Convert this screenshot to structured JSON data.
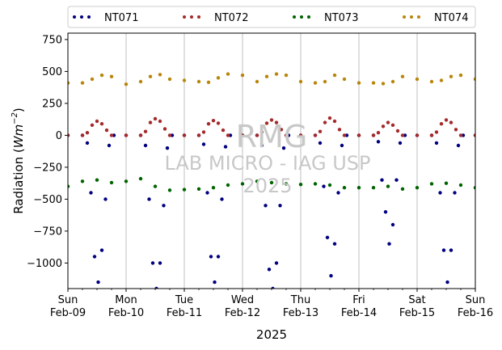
{
  "chart_data": {
    "type": "scatter",
    "title": "",
    "xlabel": "2025",
    "ylabel_prefix": "Radiation (",
    "ylabel_unit_base": "Wm",
    "ylabel_unit_exp": "−2",
    "ylabel_suffix": ")",
    "xlim": [
      "2025-02-09",
      "2025-02-16"
    ],
    "ylim": [
      -1200,
      800
    ],
    "yticks": [
      750,
      500,
      250,
      0,
      -250,
      -500,
      -750,
      -1000
    ],
    "ytick_labels": [
      "750",
      "500",
      "250",
      "0",
      "−250",
      "−500",
      "−750",
      "−1000"
    ],
    "xticks": [
      {
        "date": "2025-02-09",
        "day": "Sun",
        "date_label": "Feb-09"
      },
      {
        "date": "2025-02-10",
        "day": "Mon",
        "date_label": "Feb-10"
      },
      {
        "date": "2025-02-11",
        "day": "Tue",
        "date_label": "Feb-11"
      },
      {
        "date": "2025-02-12",
        "day": "Wed",
        "date_label": "Feb-12"
      },
      {
        "date": "2025-02-13",
        "day": "Thu",
        "date_label": "Feb-13"
      },
      {
        "date": "2025-02-14",
        "day": "Fri",
        "date_label": "Feb-14"
      },
      {
        "date": "2025-02-15",
        "day": "Sat",
        "date_label": "Feb-15"
      },
      {
        "date": "2025-02-16",
        "day": "Sun",
        "date_label": "Feb-16"
      }
    ],
    "grid": "vertical-major",
    "legend_position": "top-outside",
    "series": [
      {
        "name": "NT071",
        "color": "#000080",
        "x": [
          "2025-02-09 00:00",
          "2025-02-09 06:00",
          "2025-02-09 08:00",
          "2025-02-09 09:30",
          "2025-02-09 11:00",
          "2025-02-09 12:30",
          "2025-02-09 14:00",
          "2025-02-09 15:30",
          "2025-02-09 17:00",
          "2025-02-09 19:00",
          "2025-02-10 00:00",
          "2025-02-10 06:00",
          "2025-02-10 08:00",
          "2025-02-10 09:30",
          "2025-02-10 11:00",
          "2025-02-10 12:30",
          "2025-02-10 14:00",
          "2025-02-10 15:30",
          "2025-02-10 17:00",
          "2025-02-10 19:00",
          "2025-02-11 00:00",
          "2025-02-11 06:00",
          "2025-02-11 08:00",
          "2025-02-11 09:30",
          "2025-02-11 11:00",
          "2025-02-11 12:30",
          "2025-02-11 14:00",
          "2025-02-11 15:30",
          "2025-02-11 17:00",
          "2025-02-11 19:00",
          "2025-02-12 00:00",
          "2025-02-12 06:00",
          "2025-02-12 08:00",
          "2025-02-12 09:30",
          "2025-02-12 11:00",
          "2025-02-12 12:30",
          "2025-02-12 14:00",
          "2025-02-12 15:30",
          "2025-02-12 17:00",
          "2025-02-12 19:00",
          "2025-02-13 00:00",
          "2025-02-13 06:00",
          "2025-02-13 08:00",
          "2025-02-13 09:30",
          "2025-02-13 11:00",
          "2025-02-13 12:30",
          "2025-02-13 14:00",
          "2025-02-13 15:30",
          "2025-02-13 17:00",
          "2025-02-13 19:00",
          "2025-02-14 00:00",
          "2025-02-14 06:00",
          "2025-02-14 08:00",
          "2025-02-14 09:30",
          "2025-02-14 11:00",
          "2025-02-14 12:30",
          "2025-02-14 14:00",
          "2025-02-14 15:30",
          "2025-02-14 17:00",
          "2025-02-14 19:00",
          "2025-02-15 00:00",
          "2025-02-15 06:00",
          "2025-02-15 08:00",
          "2025-02-15 09:30",
          "2025-02-15 11:00",
          "2025-02-15 12:30",
          "2025-02-15 14:00",
          "2025-02-15 15:30",
          "2025-02-15 17:00",
          "2025-02-15 19:00",
          "2025-02-16 00:00"
        ],
        "y": [
          0,
          0,
          -60,
          -450,
          -950,
          -1150,
          -900,
          -500,
          -80,
          0,
          0,
          0,
          -80,
          -500,
          -1000,
          -1200,
          -1000,
          -550,
          -100,
          0,
          0,
          0,
          -70,
          -450,
          -950,
          -1150,
          -950,
          -500,
          -90,
          0,
          0,
          0,
          -80,
          -550,
          -1050,
          -1200,
          -1000,
          -550,
          -100,
          0,
          0,
          0,
          -60,
          -400,
          -800,
          -1100,
          -850,
          -450,
          -80,
          0,
          0,
          0,
          -50,
          -350,
          -600,
          -850,
          -700,
          -350,
          -60,
          0,
          0,
          0,
          -60,
          -450,
          -900,
          -1150,
          -900,
          -450,
          -80,
          0,
          0
        ]
      },
      {
        "name": "NT072",
        "color": "#a52a2a",
        "x": [
          "2025-02-09 00:00",
          "2025-02-09 06:00",
          "2025-02-09 08:00",
          "2025-02-09 10:00",
          "2025-02-09 12:00",
          "2025-02-09 14:00",
          "2025-02-09 16:00",
          "2025-02-09 18:00",
          "2025-02-10 00:00",
          "2025-02-10 06:00",
          "2025-02-10 08:00",
          "2025-02-10 10:00",
          "2025-02-10 12:00",
          "2025-02-10 14:00",
          "2025-02-10 16:00",
          "2025-02-10 18:00",
          "2025-02-11 00:00",
          "2025-02-11 06:00",
          "2025-02-11 08:00",
          "2025-02-11 10:00",
          "2025-02-11 12:00",
          "2025-02-11 14:00",
          "2025-02-11 16:00",
          "2025-02-11 18:00",
          "2025-02-12 00:00",
          "2025-02-12 06:00",
          "2025-02-12 08:00",
          "2025-02-12 10:00",
          "2025-02-12 12:00",
          "2025-02-12 14:00",
          "2025-02-12 16:00",
          "2025-02-12 18:00",
          "2025-02-13 00:00",
          "2025-02-13 06:00",
          "2025-02-13 08:00",
          "2025-02-13 10:00",
          "2025-02-13 12:00",
          "2025-02-13 14:00",
          "2025-02-13 16:00",
          "2025-02-13 18:00",
          "2025-02-14 00:00",
          "2025-02-14 06:00",
          "2025-02-14 08:00",
          "2025-02-14 10:00",
          "2025-02-14 12:00",
          "2025-02-14 14:00",
          "2025-02-14 16:00",
          "2025-02-14 18:00",
          "2025-02-15 00:00",
          "2025-02-15 06:00",
          "2025-02-15 08:00",
          "2025-02-15 10:00",
          "2025-02-15 12:00",
          "2025-02-15 14:00",
          "2025-02-15 16:00",
          "2025-02-15 18:00",
          "2025-02-16 00:00"
        ],
        "y": [
          0,
          0,
          20,
          80,
          110,
          90,
          40,
          0,
          0,
          0,
          30,
          100,
          130,
          110,
          50,
          0,
          0,
          0,
          25,
          90,
          115,
          95,
          40,
          0,
          0,
          0,
          25,
          95,
          120,
          100,
          45,
          0,
          0,
          0,
          30,
          100,
          135,
          110,
          45,
          0,
          0,
          0,
          20,
          70,
          100,
          80,
          35,
          0,
          0,
          0,
          25,
          90,
          120,
          100,
          45,
          0,
          0
        ]
      },
      {
        "name": "NT073",
        "color": "#006400",
        "x": [
          "2025-02-09 00:00",
          "2025-02-09 06:00",
          "2025-02-09 12:00",
          "2025-02-09 18:00",
          "2025-02-10 00:00",
          "2025-02-10 06:00",
          "2025-02-10 12:00",
          "2025-02-10 18:00",
          "2025-02-11 00:00",
          "2025-02-11 06:00",
          "2025-02-11 12:00",
          "2025-02-11 18:00",
          "2025-02-12 00:00",
          "2025-02-12 06:00",
          "2025-02-12 12:00",
          "2025-02-12 18:00",
          "2025-02-13 00:00",
          "2025-02-13 06:00",
          "2025-02-13 12:00",
          "2025-02-13 18:00",
          "2025-02-14 00:00",
          "2025-02-14 06:00",
          "2025-02-14 12:00",
          "2025-02-14 18:00",
          "2025-02-15 00:00",
          "2025-02-15 06:00",
          "2025-02-15 12:00",
          "2025-02-15 18:00",
          "2025-02-16 00:00"
        ],
        "y": [
          -400,
          -360,
          -350,
          -370,
          -360,
          -340,
          -400,
          -430,
          -425,
          -420,
          -410,
          -390,
          -380,
          -360,
          -370,
          -380,
          -385,
          -380,
          -390,
          -410,
          -410,
          -410,
          -400,
          -420,
          -410,
          -380,
          -375,
          -390,
          -410
        ]
      },
      {
        "name": "NT074",
        "color": "#b8860b",
        "x": [
          "2025-02-09 00:00",
          "2025-02-09 06:00",
          "2025-02-09 10:00",
          "2025-02-09 14:00",
          "2025-02-09 18:00",
          "2025-02-10 00:00",
          "2025-02-10 06:00",
          "2025-02-10 10:00",
          "2025-02-10 14:00",
          "2025-02-10 18:00",
          "2025-02-11 00:00",
          "2025-02-11 06:00",
          "2025-02-11 10:00",
          "2025-02-11 14:00",
          "2025-02-11 18:00",
          "2025-02-12 00:00",
          "2025-02-12 06:00",
          "2025-02-12 10:00",
          "2025-02-12 14:00",
          "2025-02-12 18:00",
          "2025-02-13 00:00",
          "2025-02-13 06:00",
          "2025-02-13 10:00",
          "2025-02-13 14:00",
          "2025-02-13 18:00",
          "2025-02-14 00:00",
          "2025-02-14 06:00",
          "2025-02-14 10:00",
          "2025-02-14 14:00",
          "2025-02-14 18:00",
          "2025-02-15 00:00",
          "2025-02-15 06:00",
          "2025-02-15 10:00",
          "2025-02-15 14:00",
          "2025-02-15 18:00",
          "2025-02-16 00:00"
        ],
        "y": [
          410,
          410,
          440,
          470,
          460,
          400,
          420,
          460,
          475,
          440,
          430,
          420,
          415,
          450,
          480,
          470,
          420,
          460,
          480,
          470,
          420,
          410,
          420,
          470,
          440,
          410,
          410,
          405,
          420,
          460,
          440,
          420,
          430,
          460,
          470,
          440
        ]
      }
    ]
  },
  "watermark": {
    "line1": "RMG",
    "line2": "LAB MICRO - IAG USP",
    "line3": "2025"
  }
}
